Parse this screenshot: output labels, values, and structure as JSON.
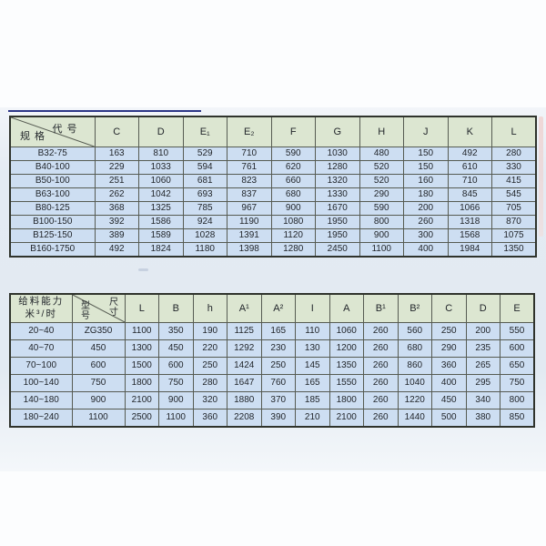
{
  "colors": {
    "header_bg": "#dce6d1",
    "cell_bg": "#cddef2",
    "grid_line": "#565b52",
    "outer_border": "#2f332c",
    "top_rule": "#2c3687"
  },
  "table1": {
    "corner": {
      "top_right": "代号",
      "bottom_left": "规格"
    },
    "columns": [
      "C",
      "D",
      "E₁",
      "E₂",
      "F",
      "G",
      "H",
      "J",
      "K",
      "L"
    ],
    "rows": [
      {
        "label": "B32-75",
        "values": [
          163,
          810,
          529,
          710,
          590,
          1030,
          480,
          150,
          492,
          280
        ]
      },
      {
        "label": "B40-100",
        "values": [
          229,
          1033,
          594,
          761,
          620,
          1280,
          520,
          150,
          610,
          330
        ]
      },
      {
        "label": "B50-100",
        "values": [
          251,
          1060,
          681,
          823,
          660,
          1320,
          520,
          160,
          710,
          415
        ]
      },
      {
        "label": "B63-100",
        "values": [
          262,
          1042,
          693,
          837,
          680,
          1330,
          290,
          180,
          845,
          545
        ]
      },
      {
        "label": "B80-125",
        "values": [
          368,
          1325,
          785,
          967,
          900,
          1670,
          590,
          200,
          1066,
          705
        ]
      },
      {
        "label": "B100-150",
        "values": [
          392,
          1586,
          924,
          1190,
          1080,
          1950,
          800,
          260,
          1318,
          870
        ]
      },
      {
        "label": "B125-150",
        "values": [
          389,
          1589,
          1028,
          1391,
          1120,
          1950,
          900,
          300,
          1568,
          1075
        ]
      },
      {
        "label": "B160-1750",
        "values": [
          492,
          1824,
          1180,
          1398,
          1280,
          2450,
          1100,
          400,
          1984,
          1350
        ]
      }
    ]
  },
  "table2": {
    "capacity_header_line1": "给料能力",
    "capacity_header_line2": "米³/时",
    "corner": {
      "top_right": "尺寸",
      "bottom_left": "型号"
    },
    "columns": [
      "L",
      "B",
      "h",
      "A¹",
      "A²",
      "I",
      "A",
      "B¹",
      "B²",
      "C",
      "D",
      "E"
    ],
    "rows": [
      {
        "capacity": "20~40",
        "model": "ZG350",
        "values": [
          1100,
          350,
          190,
          1125,
          165,
          110,
          1060,
          260,
          560,
          250,
          200,
          550
        ]
      },
      {
        "capacity": "40~70",
        "model": "450",
        "values": [
          1300,
          450,
          220,
          1292,
          230,
          130,
          1200,
          260,
          680,
          290,
          235,
          600
        ]
      },
      {
        "capacity": "70~100",
        "model": "600",
        "values": [
          1500,
          600,
          250,
          1424,
          250,
          145,
          1350,
          260,
          860,
          360,
          265,
          650
        ]
      },
      {
        "capacity": "100~140",
        "model": "750",
        "values": [
          1800,
          750,
          280,
          1647,
          760,
          165,
          1550,
          260,
          1040,
          400,
          295,
          750
        ]
      },
      {
        "capacity": "140~180",
        "model": "900",
        "values": [
          2100,
          900,
          320,
          1880,
          370,
          185,
          1800,
          260,
          1220,
          450,
          340,
          800
        ]
      },
      {
        "capacity": "180~240",
        "model": "1100",
        "values": [
          2500,
          1100,
          360,
          2208,
          390,
          210,
          2100,
          260,
          1440,
          500,
          380,
          850
        ]
      }
    ]
  }
}
